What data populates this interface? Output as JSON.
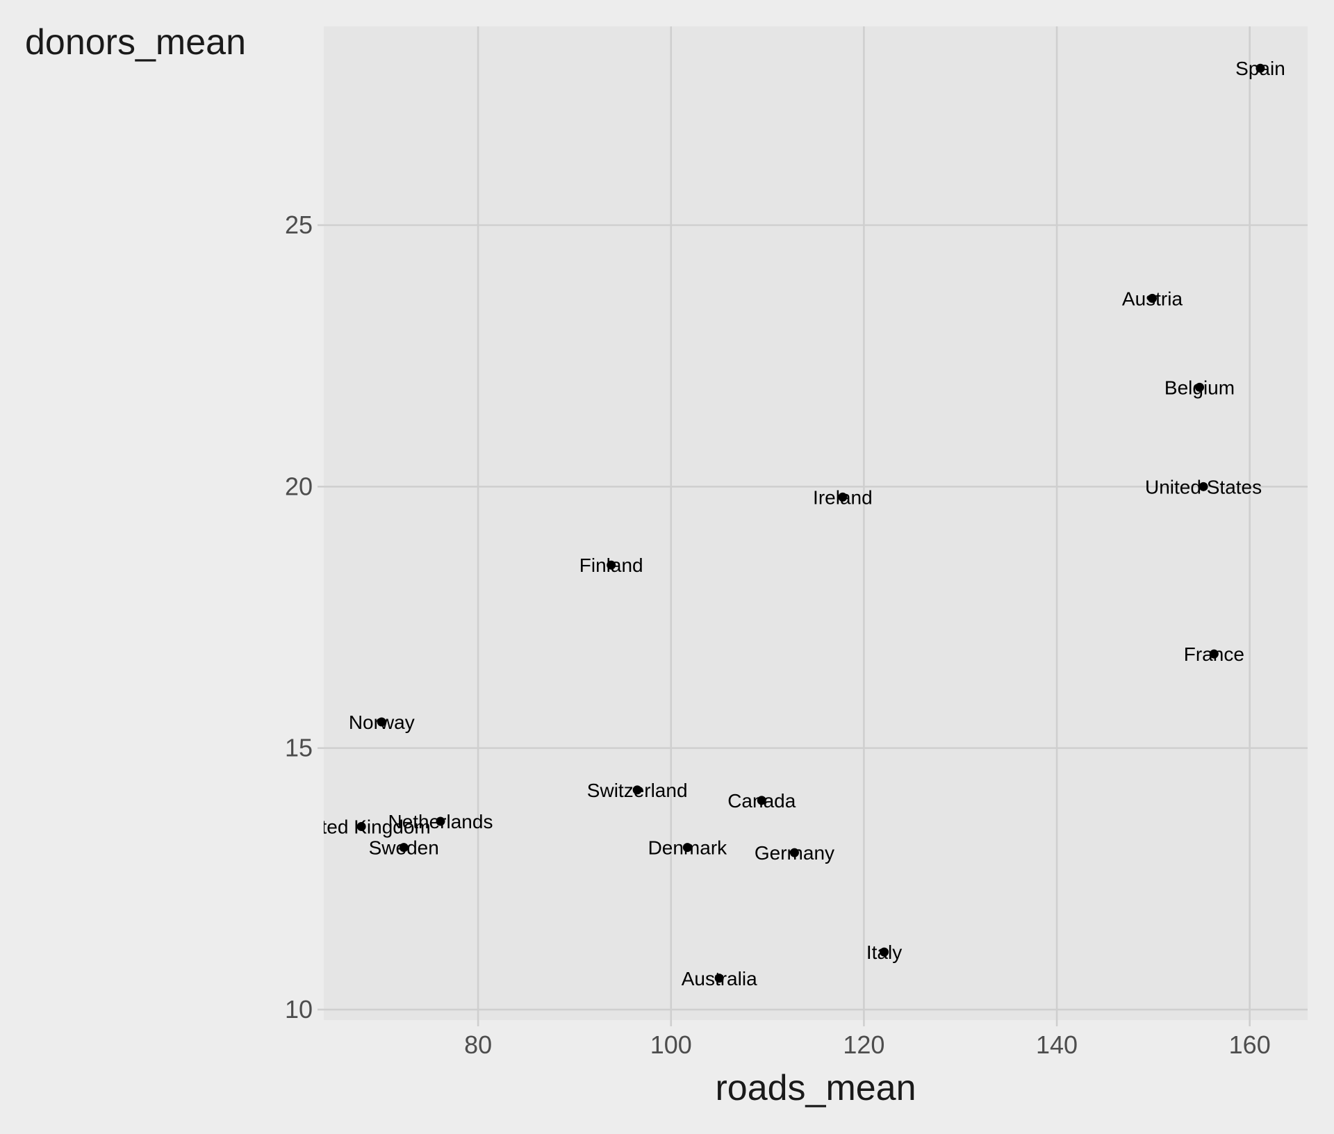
{
  "chart_data": {
    "type": "scatter",
    "xlabel": "roads_mean",
    "ylabel": "donors_mean",
    "xlim": [
      64,
      166
    ],
    "ylim": [
      9.8,
      28.8
    ],
    "x_ticks": [
      80,
      100,
      120,
      140,
      160
    ],
    "y_ticks": [
      10,
      15,
      20,
      25
    ],
    "grid": true,
    "colors": {
      "panel": "#e5e5e5",
      "grid": "#cfcfcf",
      "page": "#ededed",
      "point": "#000000"
    },
    "points": [
      {
        "label": "Spain",
        "x": 161.1,
        "y": 28.0
      },
      {
        "label": "Austria",
        "x": 149.9,
        "y": 23.6
      },
      {
        "label": "Belgium",
        "x": 154.8,
        "y": 21.9
      },
      {
        "label": "United States",
        "x": 155.2,
        "y": 20.0
      },
      {
        "label": "Ireland",
        "x": 117.8,
        "y": 19.8
      },
      {
        "label": "Finland",
        "x": 93.8,
        "y": 18.5
      },
      {
        "label": "France",
        "x": 156.3,
        "y": 16.8
      },
      {
        "label": "Norway",
        "x": 70.0,
        "y": 15.5
      },
      {
        "label": "Switzerland",
        "x": 96.5,
        "y": 14.2
      },
      {
        "label": "Canada",
        "x": 109.4,
        "y": 14.0
      },
      {
        "label": "Netherlands",
        "x": 76.1,
        "y": 13.6
      },
      {
        "label": "United Kingdom",
        "x": 67.9,
        "y": 13.5
      },
      {
        "label": "Sweden",
        "x": 72.3,
        "y": 13.1
      },
      {
        "label": "Denmark",
        "x": 101.7,
        "y": 13.1
      },
      {
        "label": "Germany",
        "x": 112.8,
        "y": 13.0
      },
      {
        "label": "Italy",
        "x": 122.1,
        "y": 11.1
      },
      {
        "label": "Australia",
        "x": 105.0,
        "y": 10.6
      }
    ]
  }
}
